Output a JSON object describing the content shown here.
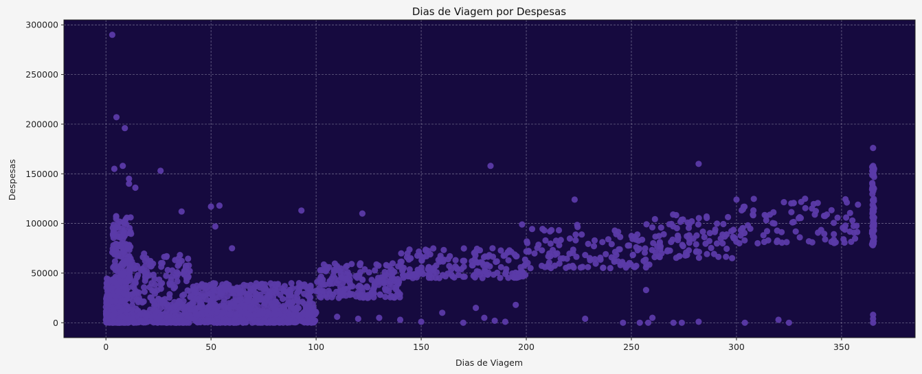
{
  "chart_data": {
    "type": "scatter",
    "title": "Dias de Viagem por Despesas",
    "xlabel": "Dias de Viagem",
    "ylabel": "Despesas",
    "xlim": [
      -20,
      385
    ],
    "ylim": [
      -15000,
      305000
    ],
    "xticks": [
      0,
      50,
      100,
      150,
      200,
      250,
      300,
      350
    ],
    "yticks": [
      0,
      50000,
      100000,
      150000,
      200000,
      250000,
      300000
    ],
    "grid": true,
    "colors": {
      "background": "#f5f5f5",
      "plot_area": "#160a3f",
      "marker": "#5b3aa8",
      "grid": "#8a86a3"
    },
    "series": [
      {
        "clusters": [
          {
            "x_range": [
              0,
              10
            ],
            "y_range": [
              0,
              45000
            ],
            "count": 380
          },
          {
            "x_range": [
              3,
              12
            ],
            "y_range": [
              40000,
              110000
            ],
            "count": 140
          },
          {
            "x_range": [
              10,
              40
            ],
            "y_range": [
              0,
              70000
            ],
            "count": 260
          },
          {
            "x_range": [
              0,
              100
            ],
            "y_range": [
              0,
              9000
            ],
            "count": 520
          },
          {
            "x_range": [
              40,
              100
            ],
            "y_range": [
              8000,
              40000
            ],
            "count": 420
          },
          {
            "x_range": [
              100,
              140
            ],
            "y_range": [
              25000,
              60000
            ],
            "count": 180
          },
          {
            "x_range": [
              140,
              200
            ],
            "y_range": [
              45000,
              75000
            ],
            "count": 170
          },
          {
            "x_range": [
              200,
              260
            ],
            "y_range": [
              55000,
              100000
            ],
            "count": 120
          },
          {
            "x_range": [
              260,
              300
            ],
            "y_range": [
              65000,
              110000
            ],
            "count": 90
          },
          {
            "x_range": [
              300,
              360
            ],
            "y_range": [
              80000,
              125000
            ],
            "count": 90
          },
          {
            "x_range": [
              364.5,
              365.5
            ],
            "y_range": [
              78000,
              160000
            ],
            "count": 70
          }
        ],
        "points": [
          [
            3,
            290000
          ],
          [
            5,
            207000
          ],
          [
            9,
            196000
          ],
          [
            4,
            155000
          ],
          [
            8,
            158000
          ],
          [
            26,
            153000
          ],
          [
            36,
            112000
          ],
          [
            11,
            145000
          ],
          [
            11,
            140000
          ],
          [
            14,
            136000
          ],
          [
            183,
            158000
          ],
          [
            282,
            160000
          ],
          [
            223,
            124000
          ],
          [
            300,
            124000
          ],
          [
            365,
            176000
          ],
          [
            365,
            158000
          ],
          [
            365,
            150000
          ],
          [
            93,
            113000
          ],
          [
            122,
            110000
          ],
          [
            50,
            117000
          ],
          [
            54,
            118000
          ],
          [
            60,
            75000
          ],
          [
            52,
            97000
          ],
          [
            257,
            33000
          ],
          [
            228,
            4000
          ],
          [
            246,
            0
          ],
          [
            254,
            0
          ],
          [
            258,
            0
          ],
          [
            260,
            5000
          ],
          [
            270,
            0
          ],
          [
            274,
            0
          ],
          [
            282,
            1000
          ],
          [
            304,
            0
          ],
          [
            320,
            3000
          ],
          [
            325,
            0
          ],
          [
            365,
            0
          ],
          [
            365,
            4000
          ],
          [
            365,
            8000
          ],
          [
            198,
            99000
          ],
          [
            176,
            15000
          ],
          [
            195,
            18000
          ],
          [
            160,
            10000
          ],
          [
            170,
            0
          ],
          [
            180,
            5000
          ],
          [
            185,
            2000
          ],
          [
            190,
            1000
          ],
          [
            150,
            1000
          ],
          [
            140,
            3000
          ],
          [
            130,
            5000
          ],
          [
            120,
            4000
          ],
          [
            110,
            6000
          ]
        ]
      }
    ]
  }
}
